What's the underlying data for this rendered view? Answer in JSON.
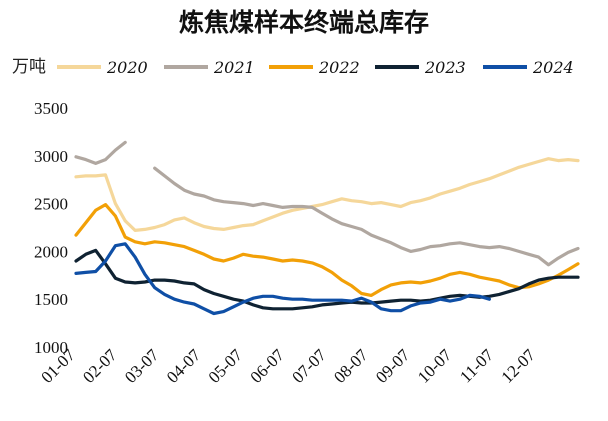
{
  "chart_data": {
    "type": "line",
    "title": "炼焦煤样本终端总库存",
    "unit": "万吨",
    "ylim": [
      1000,
      3500
    ],
    "yticks": [
      "1000",
      "1500",
      "2000",
      "2500",
      "3000",
      "3500"
    ],
    "xticks": [
      "01-07",
      "02-07",
      "03-07",
      "04-07",
      "05-07",
      "06-07",
      "07-07",
      "08-07",
      "09-07",
      "10-07",
      "11-07",
      "12-07"
    ],
    "x_period_count": 52,
    "grid": false,
    "legend_position": "top",
    "series": [
      {
        "name": "2020",
        "color": "#F5D79A",
        "segments": [
          {
            "start_week": 0,
            "values": [
              2780,
              2790,
              2790,
              2800,
              2500,
              2320,
              2220,
              2230,
              2250,
              2280,
              2330,
              2350,
              2300,
              2260,
              2240,
              2230,
              2250,
              2270,
              2280,
              2320,
              2360,
              2400,
              2430,
              2450,
              2470,
              2490,
              2520,
              2550,
              2530,
              2520,
              2500,
              2510,
              2490,
              2470,
              2510,
              2530,
              2560,
              2600,
              2630,
              2660,
              2700,
              2730,
              2760,
              2800,
              2840,
              2880,
              2910,
              2940,
              2970,
              2950,
              2960,
              2950
            ]
          }
        ]
      },
      {
        "name": "2021",
        "color": "#B0A7A0",
        "segments": [
          {
            "start_week": 0,
            "values": [
              2990,
              2960,
              2920,
              2960,
              3060,
              3140
            ]
          },
          {
            "start_week": 8,
            "values": [
              2870,
              2790,
              2710,
              2640,
              2600,
              2580,
              2540,
              2520,
              2510,
              2500,
              2480,
              2500,
              2480,
              2460,
              2470,
              2470,
              2460,
              2400,
              2340,
              2290,
              2260,
              2230,
              2170,
              2130,
              2090,
              2040,
              2000,
              2020,
              2050,
              2060,
              2080,
              2090,
              2070,
              2050,
              2040,
              2050,
              2030,
              2000,
              1970,
              1940,
              1860,
              1930,
              1990,
              2030
            ]
          }
        ]
      },
      {
        "name": "2022",
        "color": "#F2A007",
        "segments": [
          {
            "start_week": 0,
            "values": [
              2170,
              2300,
              2430,
              2490,
              2370,
              2150,
              2100,
              2080,
              2100,
              2090,
              2070,
              2050,
              2010,
              1970,
              1920,
              1900,
              1930,
              1970,
              1950,
              1940,
              1920,
              1900,
              1910,
              1900,
              1880,
              1840,
              1780,
              1700,
              1640,
              1560,
              1540,
              1600,
              1650,
              1670,
              1680,
              1670,
              1690,
              1720,
              1760,
              1780,
              1760,
              1730,
              1710,
              1690,
              1650,
              1620,
              1630,
              1660,
              1700,
              1750,
              1810,
              1870
            ]
          }
        ]
      },
      {
        "name": "2023",
        "color": "#0F2232",
        "segments": [
          {
            "start_week": 0,
            "values": [
              1900,
              1970,
              2010,
              1870,
              1720,
              1680,
              1670,
              1680,
              1700,
              1700,
              1690,
              1670,
              1660,
              1600,
              1560,
              1530,
              1500,
              1480,
              1440,
              1410,
              1400,
              1400,
              1400,
              1410,
              1420,
              1440,
              1450,
              1460,
              1470,
              1460,
              1460,
              1470,
              1480,
              1490,
              1490,
              1480,
              1490,
              1510,
              1530,
              1540,
              1530,
              1520,
              1530,
              1550,
              1580,
              1610,
              1660,
              1700,
              1720,
              1730,
              1730,
              1730
            ]
          }
        ]
      },
      {
        "name": "2024",
        "color": "#0F4FA6",
        "segments": [
          {
            "start_week": 0,
            "values": [
              1770,
              1780,
              1790,
              1900,
              2060,
              2080,
              1940,
              1760,
              1620,
              1550,
              1500,
              1470,
              1450,
              1400,
              1350,
              1370,
              1420,
              1470,
              1510,
              1530,
              1530,
              1510,
              1500,
              1500,
              1490,
              1490,
              1490,
              1490,
              1480,
              1510,
              1470,
              1400,
              1380,
              1380,
              1430,
              1460,
              1470,
              1500,
              1480,
              1500,
              1540,
              1530,
              1500
            ]
          }
        ]
      }
    ]
  }
}
